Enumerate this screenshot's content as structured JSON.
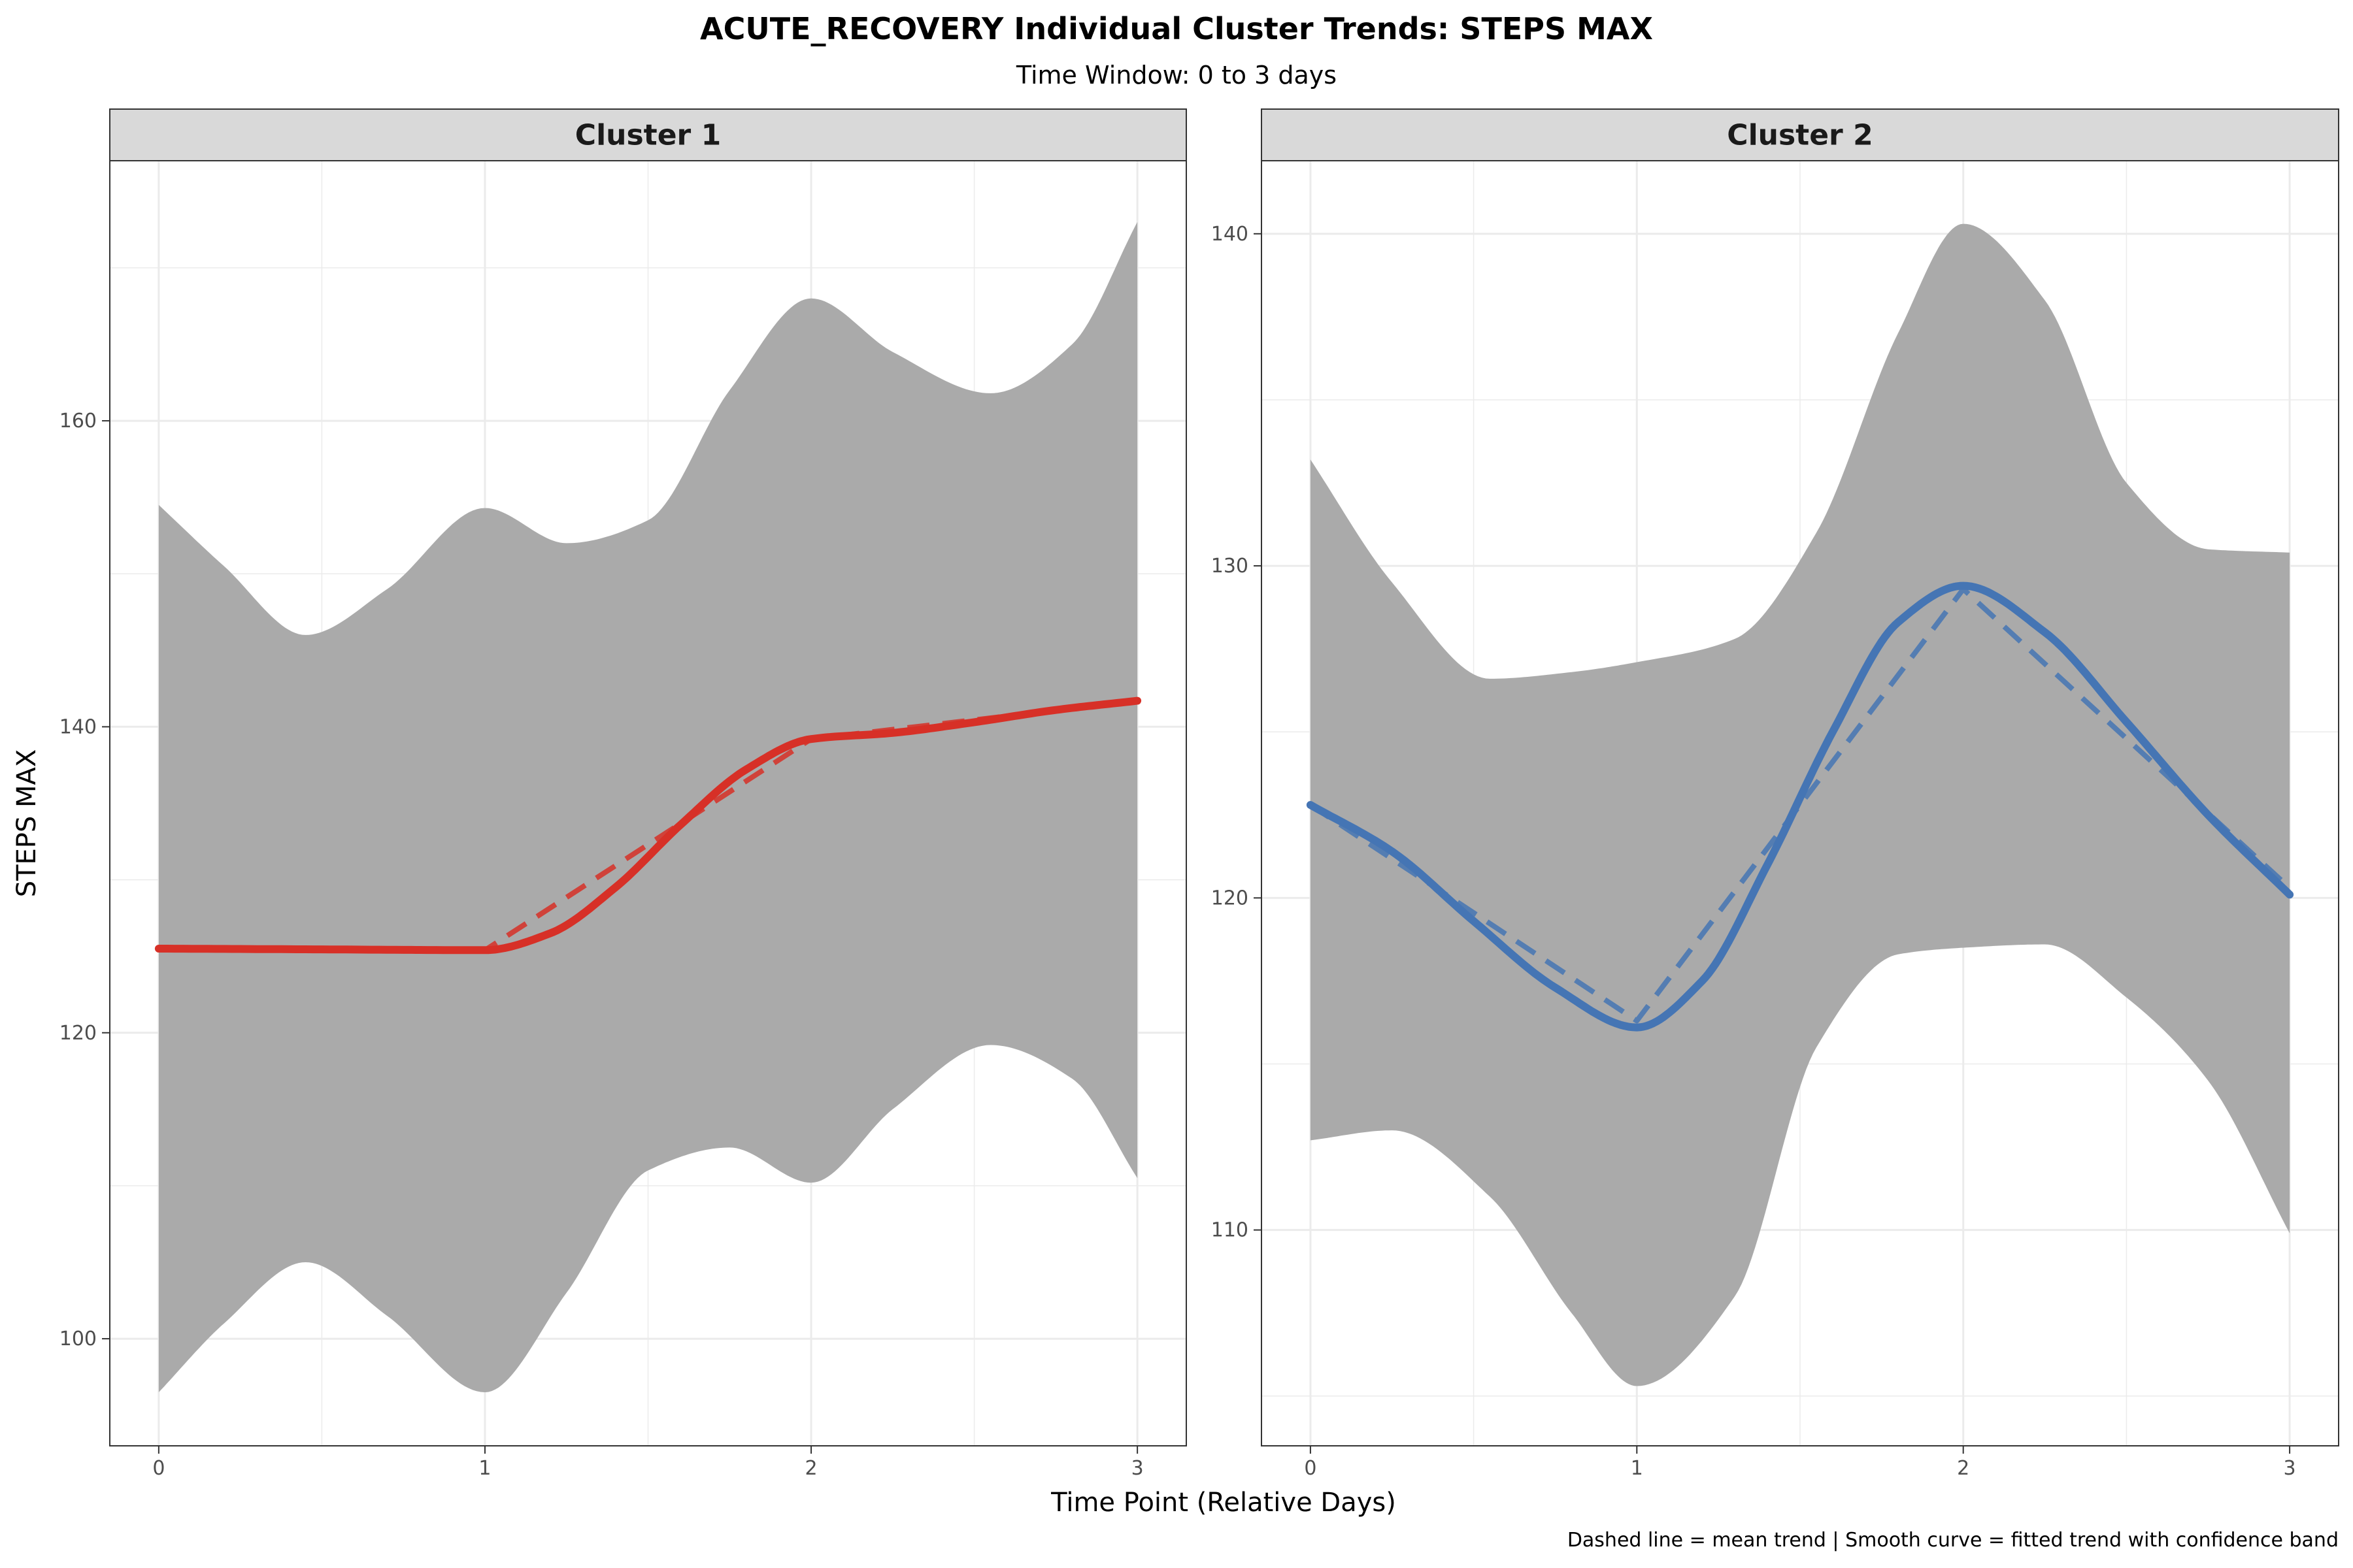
{
  "title": "ACUTE_RECOVERY Individual Cluster Trends: STEPS MAX",
  "subtitle": "Time Window: 0 to 3 days",
  "caption": "Dashed line = mean trend | Smooth curve = fitted trend with confidence band",
  "colors": {
    "cluster1": "#d73027",
    "cluster2": "#4575b4",
    "band": "#aaaaaa",
    "strip": "#d9d9d9",
    "grid": "#ebebeb"
  },
  "chart_data": {
    "type": "line",
    "xlabel": "Time Point (Relative Days)",
    "ylabel": "STEPS MAX",
    "facets": [
      {
        "name": "Cluster 1",
        "color": "#d73027",
        "xlim": [
          -0.15,
          3.15
        ],
        "ylim": [
          93.0,
          177.0
        ],
        "x_ticks": [
          0,
          1,
          2,
          3
        ],
        "y_ticks": [
          100,
          120,
          140,
          160
        ],
        "mean": {
          "x": [
            0,
            1,
            2,
            3
          ],
          "y": [
            125.5,
            125.4,
            139.2,
            141.7
          ]
        },
        "fit": {
          "x": [
            0,
            0.5,
            1.0,
            1.2,
            1.4,
            1.6,
            1.8,
            2.0,
            2.25,
            2.5,
            2.75,
            3.0
          ],
          "y": [
            125.5,
            125.45,
            125.4,
            126.5,
            129.5,
            133.6,
            137.2,
            139.2,
            139.6,
            140.3,
            141.1,
            141.7
          ]
        },
        "band": {
          "x": [
            0,
            0.2,
            0.45,
            0.7,
            1.0,
            1.25,
            1.5,
            1.75,
            2.0,
            2.25,
            2.55,
            2.8,
            3.0
          ],
          "upper": [
            154.5,
            150.5,
            146.0,
            149.0,
            154.3,
            152.0,
            153.5,
            162.0,
            168.0,
            164.5,
            161.8,
            165.0,
            173.0
          ],
          "lower": [
            96.5,
            101.0,
            105.0,
            101.5,
            96.5,
            103.0,
            111.0,
            112.5,
            110.2,
            115.0,
            119.2,
            117.0,
            110.5
          ]
        }
      },
      {
        "name": "Cluster 2",
        "color": "#4575b4",
        "xlim": [
          -0.15,
          3.15
        ],
        "ylim": [
          103.5,
          142.2
        ],
        "x_ticks": [
          0,
          1,
          2,
          3
        ],
        "y_ticks": [
          110,
          120,
          130,
          140
        ],
        "mean": {
          "x": [
            0,
            1,
            2,
            3
          ],
          "y": [
            122.8,
            116.3,
            129.3,
            120.3
          ]
        },
        "fit": {
          "x": [
            0,
            0.25,
            0.5,
            0.75,
            1.0,
            1.2,
            1.4,
            1.6,
            1.8,
            2.0,
            2.25,
            2.5,
            2.75,
            3.0
          ],
          "y": [
            122.8,
            121.4,
            119.3,
            117.3,
            116.1,
            117.5,
            121.0,
            125.0,
            128.3,
            129.4,
            128.0,
            125.3,
            122.5,
            120.1
          ]
        },
        "band": {
          "x": [
            0,
            0.25,
            0.55,
            0.8,
            1.0,
            1.3,
            1.55,
            1.8,
            2.0,
            2.25,
            2.5,
            2.75,
            3.0
          ],
          "upper": [
            133.2,
            129.5,
            126.6,
            126.8,
            127.1,
            127.8,
            131.0,
            137.0,
            140.3,
            138.0,
            132.5,
            130.5,
            130.4
          ],
          "lower": [
            112.7,
            113.0,
            111.0,
            107.5,
            105.3,
            108.0,
            115.5,
            118.3,
            118.5,
            118.6,
            117.0,
            114.5,
            109.9
          ]
        }
      }
    ]
  }
}
